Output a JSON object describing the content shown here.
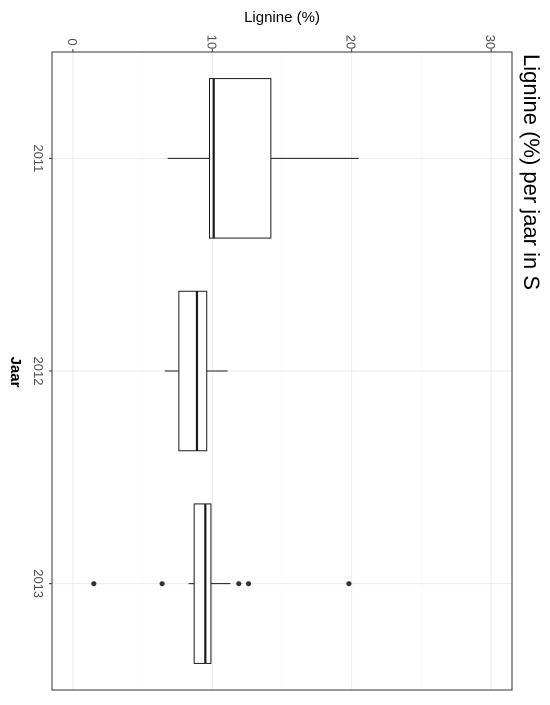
{
  "chart_data": {
    "type": "boxplot",
    "title": "Lignine (%) per jaar in S",
    "xlabel": "Jaar",
    "ylabel": "Lignine (%)",
    "ylim": [
      -1.5,
      31.5
    ],
    "y_ticks": [
      0,
      10,
      20,
      30
    ],
    "categories": [
      "2011",
      "2012",
      "2013"
    ],
    "grid": true,
    "orientation": "rotated-90",
    "boxes": [
      {
        "category": "2011",
        "whisker_low": 6.8,
        "q1": 9.8,
        "median": 10.1,
        "q3": 14.2,
        "whisker_high": 20.5,
        "outliers": []
      },
      {
        "category": "2012",
        "whisker_low": 6.6,
        "q1": 7.6,
        "median": 8.9,
        "q3": 9.6,
        "whisker_high": 11.1,
        "outliers": []
      },
      {
        "category": "2013",
        "whisker_low": 8.3,
        "q1": 8.7,
        "median": 9.5,
        "q3": 9.9,
        "whisker_high": 11.3,
        "outliers": [
          1.5,
          6.4,
          11.9,
          12.6,
          19.8
        ]
      }
    ],
    "colors": {
      "box_fill": "#ffffff",
      "line": "#1a1a1a",
      "grid": "#ebebeb",
      "point": "#333333"
    }
  }
}
